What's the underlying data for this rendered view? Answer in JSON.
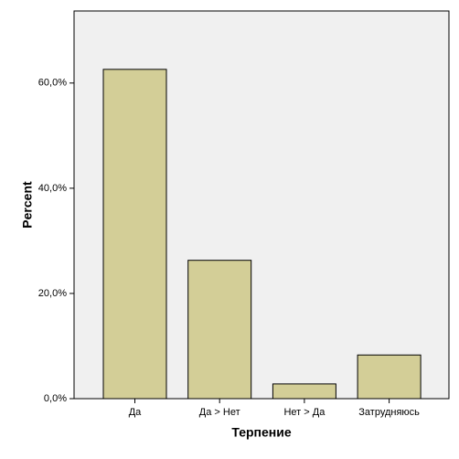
{
  "chart_data": {
    "type": "bar",
    "x_label": "Терпение",
    "y_label": "Percent",
    "categories": [
      "Да",
      "Да > Нет",
      "Нет > Да",
      "Затрудняюсь"
    ],
    "values": [
      62.6,
      26.3,
      2.8,
      8.3
    ],
    "color": "#d3ce97",
    "ylim": [
      0,
      73.7
    ],
    "yticks": [
      {
        "value": 0,
        "label": "0,0%"
      },
      {
        "value": 20,
        "label": "20,0%"
      },
      {
        "value": 40,
        "label": "40,0%"
      },
      {
        "value": 60,
        "label": "60,0%"
      }
    ],
    "grid": false
  }
}
